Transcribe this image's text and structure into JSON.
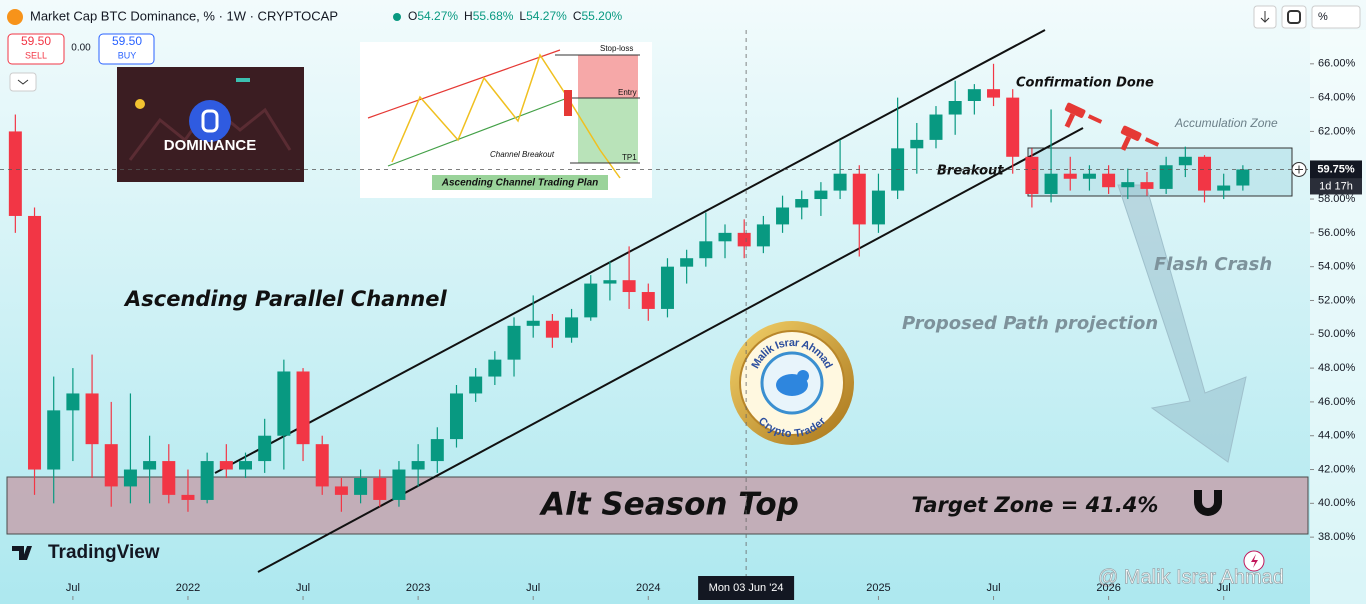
{
  "header": {
    "symbol": "Market Cap BTC Dominance, % · 1W · CRYPTOCAP",
    "ohlc": [
      {
        "label": "O",
        "value": "54.27%"
      },
      {
        "label": "H",
        "value": "55.68%"
      },
      {
        "label": "L",
        "value": "54.27%"
      },
      {
        "label": "C",
        "value": "55.20%"
      }
    ],
    "scale_mode": "%"
  },
  "trade": {
    "sell_price": "59.50",
    "sell": "SELL",
    "spread": "0.00",
    "buy_price": "59.50",
    "buy": "BUY"
  },
  "chart_data": {
    "type": "candlestick",
    "x": [
      3,
      4,
      5,
      6,
      7,
      8,
      9,
      10,
      11,
      12,
      13,
      14,
      15,
      16,
      17,
      18,
      19,
      20,
      21,
      22,
      23,
      24,
      25,
      26,
      27,
      28,
      29,
      30,
      31,
      32,
      33,
      34,
      35,
      36,
      37,
      38,
      39,
      40,
      41,
      42,
      43,
      44,
      45,
      46,
      47,
      48,
      49,
      50,
      51,
      52,
      53,
      54,
      55,
      56,
      57,
      58,
      59,
      60,
      61,
      62,
      63,
      64,
      65,
      66,
      67
    ],
    "open": [
      62,
      57,
      42,
      45.5,
      46.5,
      43.5,
      41,
      42,
      42.5,
      40.5,
      40.2,
      42.5,
      42,
      42.5,
      44,
      47.8,
      43.5,
      41,
      40.5,
      41.5,
      40.2,
      42,
      42.5,
      43.8,
      46.5,
      47.5,
      48.5,
      50.5,
      50.8,
      49.8,
      51,
      53,
      53.2,
      52.5,
      51.5,
      54,
      54.5,
      55.5,
      56,
      55.2,
      56.5,
      57.5,
      58,
      58.5,
      59.5,
      56.5,
      58.5,
      61,
      61.5,
      63,
      63.8,
      64.5,
      64,
      60.5,
      58.3,
      59.5,
      59.2,
      59.5,
      58.7,
      59,
      58.6,
      60,
      60.5,
      58.5,
      58.8
    ],
    "high": [
      63,
      57.5,
      47.5,
      48,
      48.8,
      46,
      46.5,
      44,
      43.5,
      42,
      43,
      43.5,
      43,
      45,
      48.5,
      48,
      44,
      41.5,
      42,
      42,
      42.5,
      43.5,
      44.5,
      47,
      48,
      49,
      51,
      52.3,
      51.2,
      51.5,
      53.5,
      54.3,
      55.2,
      53,
      54.5,
      55,
      57.2,
      56.5,
      56.8,
      57,
      58.2,
      58.5,
      59,
      61.5,
      60,
      59.5,
      64,
      62.5,
      63.5,
      65,
      64.8,
      66,
      64.5,
      61,
      63.3,
      60.5,
      60,
      60,
      59.8,
      59.6,
      60.5,
      61.1,
      60.6,
      59.5,
      60
    ],
    "low": [
      56,
      40.5,
      40,
      42.5,
      41.5,
      39.8,
      40,
      40,
      40,
      39.5,
      40,
      41.5,
      41.5,
      41.8,
      42,
      42.5,
      40.5,
      39.5,
      40,
      39.8,
      39.8,
      41,
      41.8,
      43.3,
      46,
      47,
      47.5,
      49.8,
      49.2,
      49.5,
      50.8,
      52,
      51.5,
      50.8,
      51,
      53,
      54,
      54.5,
      54.5,
      54.8,
      56,
      56.8,
      57,
      58,
      54.6,
      56,
      58,
      59.5,
      61,
      61.8,
      63,
      63.5,
      59.5,
      57.5,
      57.8,
      58.5,
      58.5,
      58.3,
      58,
      58.2,
      58.3,
      59.3,
      57.8,
      58,
      58.5
    ],
    "close": [
      57,
      42,
      45.5,
      46.5,
      43.5,
      41,
      42,
      42.5,
      40.5,
      40.2,
      42.5,
      42,
      42.5,
      44,
      47.8,
      43.5,
      41,
      40.5,
      41.5,
      40.2,
      42,
      42.5,
      43.8,
      46.5,
      47.5,
      48.5,
      50.5,
      50.8,
      49.8,
      51,
      53,
      53.2,
      52.5,
      51.5,
      54,
      54.5,
      55.5,
      56,
      55.2,
      56.5,
      57.5,
      58,
      58.5,
      59.5,
      56.5,
      58.5,
      61,
      61.5,
      63,
      63.8,
      64.5,
      64,
      60.5,
      58.3,
      59.5,
      59.2,
      59.5,
      58.7,
      59,
      58.6,
      60,
      60.5,
      58.5,
      58.8,
      59.75
    ],
    "up_color": "#089981",
    "down_color": "#f23645",
    "xlim": [
      2.2,
      70.5
    ],
    "ylim": [
      34.4,
      68.0
    ],
    "xticks": [
      {
        "value": 6,
        "label": "Jul"
      },
      {
        "value": 12,
        "label": "2022"
      },
      {
        "value": 18,
        "label": "Jul"
      },
      {
        "value": 24,
        "label": "2023"
      },
      {
        "value": 30,
        "label": "Jul"
      },
      {
        "value": 36,
        "label": "2024"
      },
      {
        "value": 48,
        "label": "2025"
      },
      {
        "value": 54,
        "label": "Jul"
      },
      {
        "value": 60,
        "label": "2026"
      },
      {
        "value": 66,
        "label": "Jul"
      }
    ],
    "yticks": [
      {
        "value": 38,
        "label": "38.00%"
      },
      {
        "value": 40,
        "label": "40.00%"
      },
      {
        "value": 42,
        "label": "42.00%"
      },
      {
        "value": 44,
        "label": "44.00%"
      },
      {
        "value": 46,
        "label": "46.00%"
      },
      {
        "value": 48,
        "label": "48.00%"
      },
      {
        "value": 50,
        "label": "50.00%"
      },
      {
        "value": 52,
        "label": "52.00%"
      },
      {
        "value": 54,
        "label": "54.00%"
      },
      {
        "value": 56,
        "label": "56.00%"
      },
      {
        "value": 58,
        "label": "58.00%"
      },
      {
        "value": 60,
        "label": "60.00%"
      },
      {
        "value": 62,
        "label": "62.00%"
      },
      {
        "value": 64,
        "label": "64.00%"
      },
      {
        "value": 66,
        "label": "66.00%"
      }
    ],
    "last_price": {
      "value": 59.75,
      "label": "59.75%",
      "countdown": "1d 17h"
    },
    "crosshair": {
      "x": 41.1,
      "label": "Mon 03 Jun '24"
    },
    "annotations": {
      "channel": "Ascending Parallel Channel",
      "breakout": "Breakout",
      "confirmation": "Confirmation Done",
      "accumulation": "Accumulation Zone",
      "flash_crash": "Flash Crash",
      "projection": "Proposed Path projection",
      "alt_season": "Alt Season Top",
      "target": "Target Zone = 41.4%"
    }
  },
  "insets": {
    "dominance": "DOMINANCE",
    "plan_title": "Ascending Channel Trading Plan",
    "stop_loss": "Stop-loss",
    "entry": "Entry",
    "tp1": "TP1",
    "channel_breakout": "Channel Breakout"
  },
  "branding": {
    "logo": "TradingView",
    "watermark": "@ Malik Israr Ahmad",
    "badge_name": "Malik Israr Ahmad",
    "badge_role": "Crypto Trader"
  }
}
